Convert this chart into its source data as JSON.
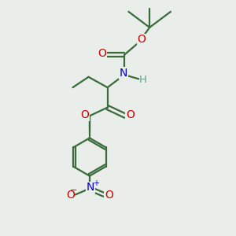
{
  "background_color": "#eaeeea",
  "bond_color": "#3a6b3a",
  "oxygen_color": "#cc0000",
  "nitrogen_color": "#0000cc",
  "hydrogen_color": "#6a9a8a",
  "figsize": [
    3.0,
    3.0
  ],
  "dpi": 100,
  "xlim": [
    0,
    10
  ],
  "ylim": [
    0,
    11
  ]
}
